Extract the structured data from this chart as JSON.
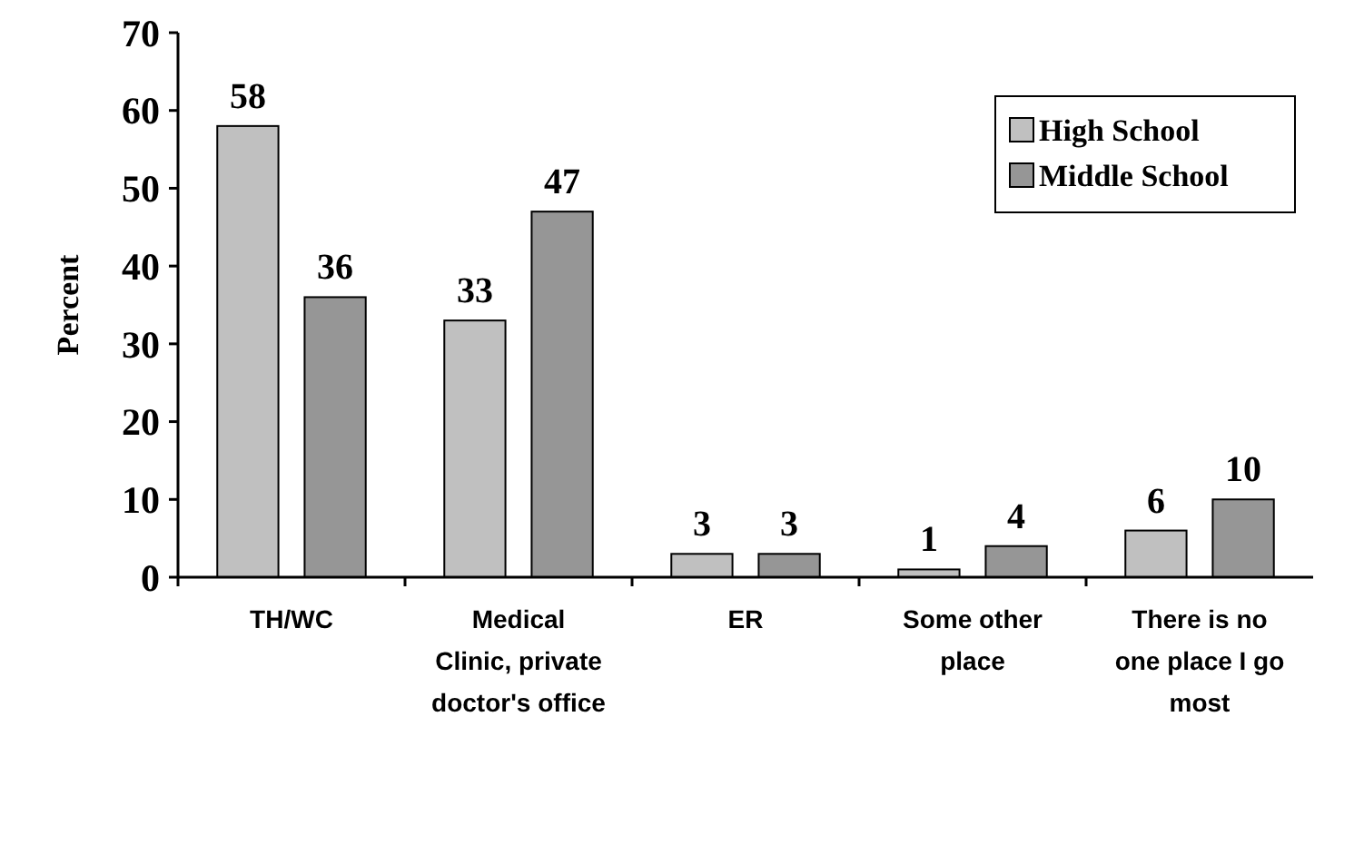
{
  "chart_data": {
    "type": "bar",
    "ylabel": "Percent",
    "categories": [
      "TH/WC",
      "Medical Clinic, private doctor's office",
      "ER",
      "Some other place",
      "There is no one place I go most"
    ],
    "series": [
      {
        "name": "High School",
        "color": "#c0c0c0",
        "values": [
          58,
          33,
          3,
          1,
          6
        ]
      },
      {
        "name": "Middle School",
        "color": "#969696",
        "values": [
          36,
          47,
          3,
          4,
          10
        ]
      }
    ],
    "ylim": [
      0,
      70
    ],
    "yticks": [
      0,
      10,
      20,
      30,
      40,
      50,
      60,
      70
    ],
    "data_labels": true,
    "legend": "top right",
    "grid": false
  }
}
